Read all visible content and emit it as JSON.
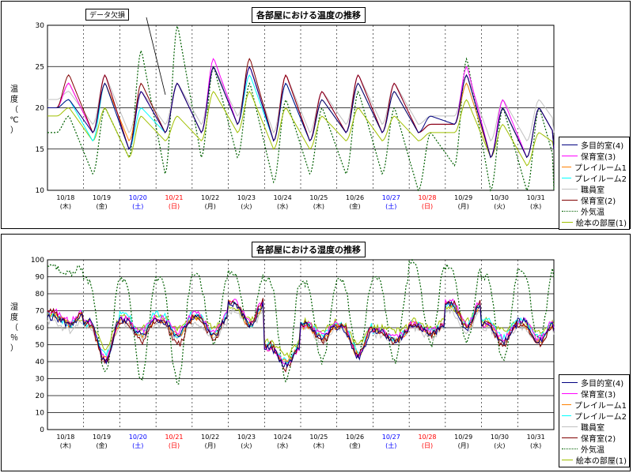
{
  "chart_data": [
    {
      "type": "line",
      "title": "各部屋における温度の推移",
      "ylabel": "温度（℃）",
      "ylim": [
        10,
        30
      ],
      "yticks": [
        10,
        15,
        20,
        25,
        30
      ],
      "grid": true,
      "legend_position": "right",
      "annotation": "データ欠損",
      "dates": [
        "10/18",
        "10/19",
        "10/20",
        "10/21",
        "10/22",
        "10/23",
        "10/24",
        "10/25",
        "10/26",
        "10/27",
        "10/28",
        "10/29",
        "10/30",
        "10/31"
      ],
      "weekdays": [
        "(木)",
        "(金)",
        "(土)",
        "(日)",
        "(月)",
        "(火)",
        "(水)",
        "(木)",
        "(金)",
        "(土)",
        "(日)",
        "(月)",
        "(火)",
        "(水)"
      ],
      "x_range_days": [
        0,
        14
      ],
      "series": [
        {
          "name": "多目的室(4)",
          "color": "#000080",
          "style": "solid",
          "peaks": [
            21,
            23,
            22,
            23,
            25,
            25,
            23,
            21,
            23,
            22,
            19,
            24,
            20,
            20
          ],
          "troughs": [
            20,
            17,
            15,
            17,
            17,
            18,
            16,
            16,
            17,
            17,
            17,
            18,
            14,
            14,
            15
          ]
        },
        {
          "name": "保育室(3)",
          "color": "#ff00ff",
          "style": "solid",
          "peaks": [
            23,
            24,
            22,
            23,
            26,
            25,
            24,
            22,
            24,
            23,
            18,
            25,
            21,
            20
          ],
          "troughs": [
            20,
            17,
            15,
            17,
            17,
            18,
            16,
            16,
            17,
            17,
            17,
            18,
            14,
            14,
            15
          ]
        },
        {
          "name": "プレイルーム1",
          "color": "#ff8000",
          "style": "solid",
          "peaks": [
            23,
            23,
            22,
            23,
            25,
            25,
            24,
            21,
            23,
            22,
            18,
            23,
            20,
            20
          ],
          "troughs": [
            20,
            17,
            16,
            17,
            17,
            18,
            16,
            16,
            17,
            17,
            17,
            18,
            14,
            14,
            15
          ]
        },
        {
          "name": "プレイルーム2",
          "color": "#00ffff",
          "style": "solid",
          "peaks": [
            21,
            23,
            20,
            23,
            25,
            24,
            23,
            21,
            23,
            22,
            18,
            23,
            20,
            20
          ],
          "troughs": [
            20,
            16,
            15,
            17,
            17,
            18,
            16,
            16,
            17,
            17,
            17,
            18,
            14,
            14,
            15
          ]
        },
        {
          "name": "職員室",
          "color": "#c0c0c0",
          "style": "solid",
          "peaks": [
            22,
            24,
            22,
            23,
            25,
            25,
            24,
            22,
            24,
            23,
            19,
            24,
            21,
            21
          ],
          "troughs": [
            21,
            18,
            17,
            18,
            18,
            19,
            17,
            17,
            18,
            18,
            18,
            19,
            16,
            16,
            17
          ]
        },
        {
          "name": "保育室(2)",
          "color": "#800000",
          "style": "solid",
          "peaks": [
            24,
            24,
            23,
            23,
            25,
            26,
            24,
            22,
            24,
            23,
            18,
            24,
            20,
            20
          ],
          "troughs": [
            20,
            17,
            15,
            17,
            17,
            18,
            16,
            16,
            17,
            17,
            17,
            18,
            14,
            14,
            15
          ]
        },
        {
          "name": "外気温",
          "color": "#006000",
          "style": "dotted",
          "peaks": [
            19,
            20,
            27,
            30,
            25,
            23,
            21,
            20,
            22,
            20,
            17,
            26,
            20,
            20
          ],
          "troughs": [
            17,
            12,
            14,
            12,
            14,
            14,
            11,
            12,
            12,
            12,
            10,
            13,
            10,
            10,
            10
          ]
        },
        {
          "name": "絵本の部屋(1)",
          "color": "#a0c000",
          "style": "solid",
          "peaks": [
            20,
            20,
            19,
            19,
            22,
            22,
            20,
            19,
            20,
            19,
            17,
            21,
            18,
            17
          ],
          "troughs": [
            19,
            16,
            14,
            16,
            16,
            17,
            15,
            15,
            16,
            16,
            16,
            17,
            14,
            13,
            15
          ]
        }
      ]
    },
    {
      "type": "line",
      "title": "各部屋における湿度の推移",
      "ylabel": "湿度（％）",
      "ylim": [
        0,
        100
      ],
      "yticks": [
        0,
        10,
        20,
        30,
        40,
        50,
        60,
        70,
        80,
        90,
        100
      ],
      "grid": true,
      "legend_position": "right",
      "dates": [
        "10/18",
        "10/19",
        "10/20",
        "10/21",
        "10/22",
        "10/23",
        "10/24",
        "10/25",
        "10/26",
        "10/27",
        "10/28",
        "10/29",
        "10/30",
        "10/31"
      ],
      "weekdays": [
        "(木)",
        "(金)",
        "(土)",
        "(日)",
        "(月)",
        "(火)",
        "(水)",
        "(木)",
        "(金)",
        "(土)",
        "(日)",
        "(月)",
        "(火)",
        "(水)"
      ],
      "x_range_days": [
        0,
        14
      ],
      "series": [
        {
          "name": "多目的室(4)",
          "color": "#000080",
          "style": "solid",
          "highs": [
            66,
            64,
            64,
            64,
            66,
            74,
            48,
            62,
            60,
            58,
            62,
            74,
            62,
            64
          ],
          "lows": [
            62,
            40,
            56,
            56,
            56,
            62,
            38,
            54,
            42,
            52,
            56,
            60,
            52,
            52,
            58
          ]
        },
        {
          "name": "保育室(3)",
          "color": "#ff00ff",
          "style": "solid",
          "highs": [
            70,
            64,
            66,
            66,
            68,
            76,
            48,
            62,
            62,
            58,
            62,
            76,
            62,
            64
          ],
          "lows": [
            64,
            42,
            58,
            58,
            58,
            64,
            38,
            56,
            44,
            54,
            58,
            62,
            54,
            54,
            60
          ]
        },
        {
          "name": "プレイルーム1",
          "color": "#ff8000",
          "style": "solid",
          "highs": [
            68,
            62,
            64,
            64,
            66,
            74,
            48,
            60,
            60,
            58,
            62,
            74,
            62,
            62
          ],
          "lows": [
            62,
            42,
            56,
            56,
            56,
            62,
            40,
            54,
            44,
            52,
            56,
            60,
            52,
            52,
            58
          ]
        },
        {
          "name": "プレイルーム2",
          "color": "#00ffff",
          "style": "solid",
          "highs": [
            68,
            62,
            68,
            68,
            68,
            74,
            50,
            62,
            62,
            58,
            62,
            74,
            64,
            64
          ],
          "lows": [
            62,
            44,
            56,
            56,
            56,
            62,
            40,
            56,
            46,
            54,
            58,
            62,
            54,
            54,
            60
          ]
        },
        {
          "name": "職員室",
          "color": "#c0c0c0",
          "style": "solid",
          "highs": [
            64,
            60,
            62,
            62,
            62,
            70,
            48,
            60,
            60,
            56,
            60,
            70,
            60,
            60
          ],
          "lows": [
            58,
            44,
            54,
            54,
            54,
            60,
            40,
            52,
            44,
            52,
            54,
            58,
            52,
            52,
            56
          ]
        },
        {
          "name": "保育室(2)",
          "color": "#800000",
          "style": "solid",
          "highs": [
            70,
            62,
            64,
            64,
            66,
            76,
            50,
            62,
            62,
            58,
            62,
            76,
            62,
            62
          ],
          "lows": [
            62,
            40,
            52,
            50,
            54,
            62,
            36,
            52,
            44,
            52,
            56,
            60,
            50,
            50,
            58
          ]
        },
        {
          "name": "外気温",
          "color": "#006000",
          "style": "dotted",
          "highs": [
            96,
            88,
            88,
            88,
            90,
            92,
            88,
            86,
            88,
            90,
            98,
            96,
            90,
            94
          ],
          "lows": [
            92,
            34,
            30,
            28,
            52,
            60,
            28,
            40,
            44,
            40,
            50,
            52,
            40,
            52,
            90
          ]
        },
        {
          "name": "絵本の部屋(1)",
          "color": "#a0c000",
          "style": "solid",
          "highs": [
            66,
            64,
            66,
            66,
            66,
            72,
            52,
            64,
            62,
            60,
            64,
            72,
            64,
            64
          ],
          "lows": [
            64,
            48,
            60,
            60,
            60,
            64,
            44,
            58,
            50,
            58,
            60,
            64,
            58,
            58,
            62
          ]
        }
      ]
    }
  ]
}
